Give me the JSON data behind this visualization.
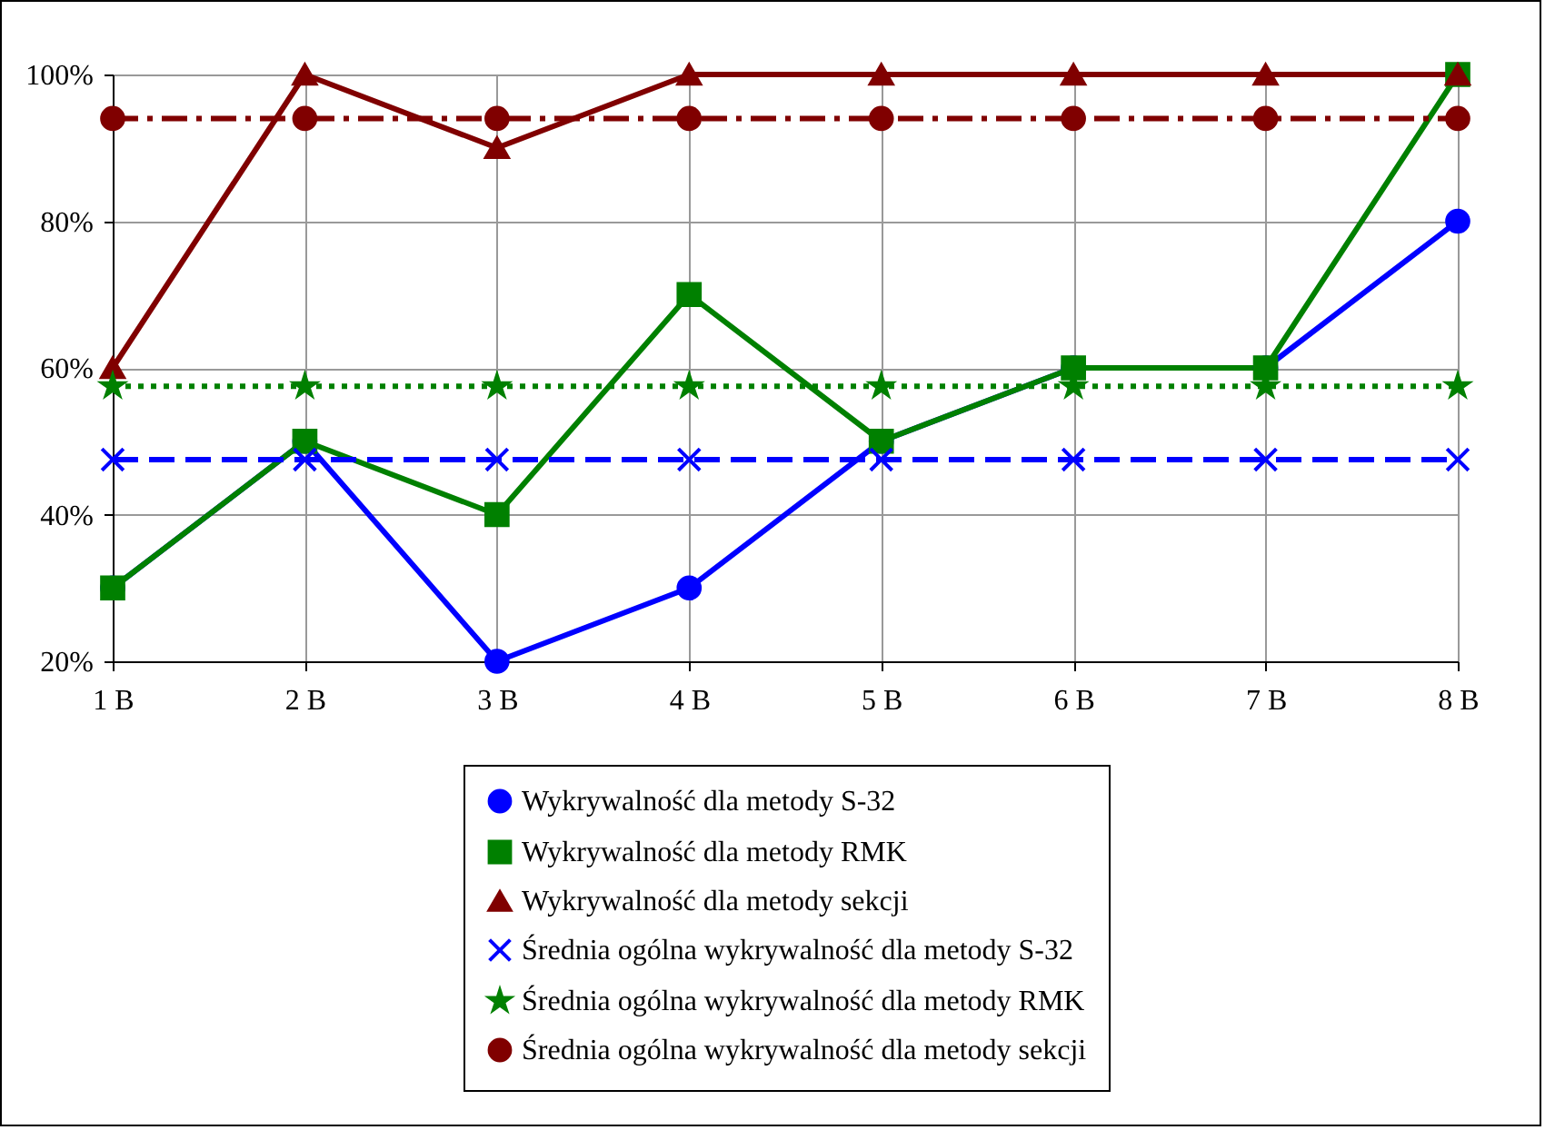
{
  "chart_data": {
    "type": "line",
    "categories": [
      "1 B",
      "2 B",
      "3 B",
      "4 B",
      "5 B",
      "6 B",
      "7 B",
      "8 B"
    ],
    "series": [
      {
        "name": "Wykrywalność dla metody S-32",
        "color": "#0000ff",
        "marker": "circle",
        "line_style": "solid",
        "values": [
          30,
          50,
          20,
          30,
          50,
          60,
          60,
          80
        ]
      },
      {
        "name": "Wykrywalność dla metody RMK",
        "color": "#008000",
        "marker": "square",
        "line_style": "solid",
        "values": [
          30,
          50,
          40,
          70,
          50,
          60,
          60,
          100
        ]
      },
      {
        "name": "Wykrywalność dla metody sekcji",
        "color": "#800000",
        "marker": "triangle",
        "line_style": "solid",
        "values": [
          60,
          100,
          90,
          100,
          100,
          100,
          100,
          100
        ]
      },
      {
        "name": "Średnia ogólna wykrywalność dla metody S-32",
        "color": "#0000ff",
        "marker": "cross",
        "line_style": "dashed",
        "values": [
          47.5,
          47.5,
          47.5,
          47.5,
          47.5,
          47.5,
          47.5,
          47.5
        ]
      },
      {
        "name": "Średnia ogólna wykrywalność dla metody RMK",
        "color": "#008000",
        "marker": "star",
        "line_style": "dotted",
        "values": [
          57.5,
          57.5,
          57.5,
          57.5,
          57.5,
          57.5,
          57.5,
          57.5
        ]
      },
      {
        "name": "Średnia ogólna wykrywalność dla metody sekcji",
        "color": "#800000",
        "marker": "circle",
        "line_style": "dashdot",
        "values": [
          94,
          94,
          94,
          94,
          94,
          94,
          94,
          94
        ]
      }
    ],
    "ylim": [
      20,
      100
    ],
    "yticks": [
      {
        "value": 20,
        "label": "20%"
      },
      {
        "value": 40,
        "label": "40%"
      },
      {
        "value": 60,
        "label": "60%"
      },
      {
        "value": 80,
        "label": "80%"
      },
      {
        "value": 100,
        "label": "100%"
      }
    ],
    "grid": true,
    "legend": "bottom"
  }
}
